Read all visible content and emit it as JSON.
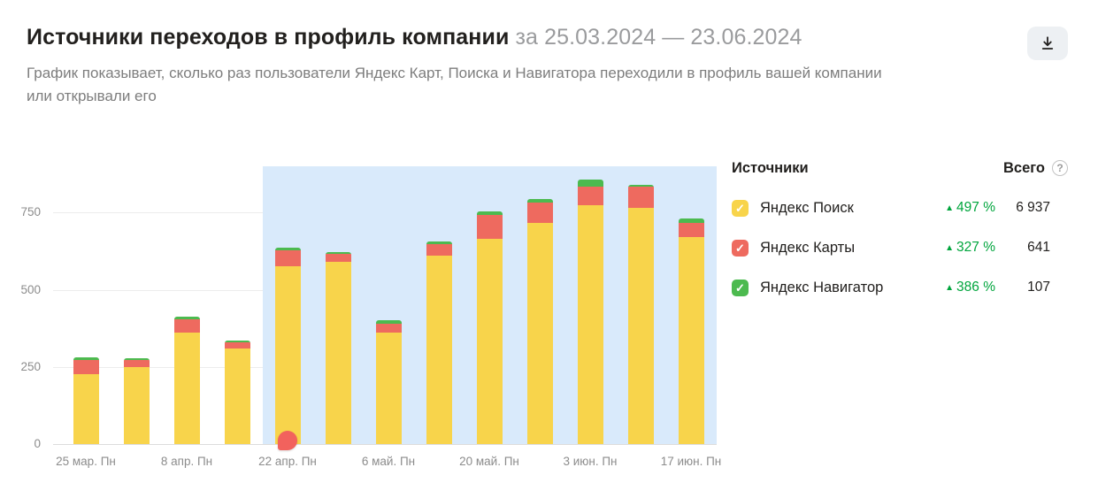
{
  "page": {
    "title": "Источники переходов в профиль компании",
    "period": "за 25.03.2024 — 23.06.2024",
    "subtitle": "График показывает, сколько раз пользователи Яндекс Карт, Поиска и Навигатора переходили в профиль вашей компании или открывали его"
  },
  "legend": {
    "sources_header": "Источники",
    "total_header": "Всего",
    "help_icon": "?",
    "check_icon": "✓",
    "arrow_up": "▲",
    "items": [
      {
        "label": "Яндекс Поиск",
        "color": "#f8d44b",
        "delta": "497 %",
        "total": "6 937"
      },
      {
        "label": "Яндекс Карты",
        "color": "#ee6a5f",
        "delta": "327 %",
        "total": "641"
      },
      {
        "label": "Яндекс Навигатор",
        "color": "#4cba4f",
        "delta": "386 %",
        "total": "107"
      }
    ]
  },
  "chart_data": {
    "type": "bar",
    "stacked": true,
    "title": "Источники переходов в профиль компании",
    "x_tick_labels": [
      "25 мар. Пн",
      "8 апр. Пн",
      "22 апр. Пн",
      "6 май. Пн",
      "20 май. Пн",
      "3 июн. Пн",
      "17 июн. Пн"
    ],
    "label_every": 2,
    "y_ticks": [
      0,
      250,
      500,
      750
    ],
    "ylim": [
      0,
      900
    ],
    "grid": true,
    "legend_position": "right",
    "series": [
      {
        "name": "Яндекс Поиск",
        "color": "#f8d44b",
        "values": [
          225,
          250,
          360,
          310,
          575,
          590,
          360,
          610,
          665,
          715,
          775,
          765,
          670
        ]
      },
      {
        "name": "Яндекс Карты",
        "color": "#ee6a5f",
        "values": [
          48,
          22,
          45,
          20,
          52,
          25,
          30,
          38,
          78,
          68,
          58,
          68,
          48
        ]
      },
      {
        "name": "Яндекс Навигатор",
        "color": "#4cba4f",
        "values": [
          7,
          5,
          8,
          5,
          10,
          8,
          12,
          8,
          10,
          12,
          25,
          8,
          12
        ]
      }
    ],
    "highlight_range": {
      "start_index": 4,
      "end_index": 12,
      "color": "#d9eafb"
    },
    "marker": {
      "bar_index": 4,
      "color": "#f2625d",
      "name": "comment-marker"
    }
  }
}
